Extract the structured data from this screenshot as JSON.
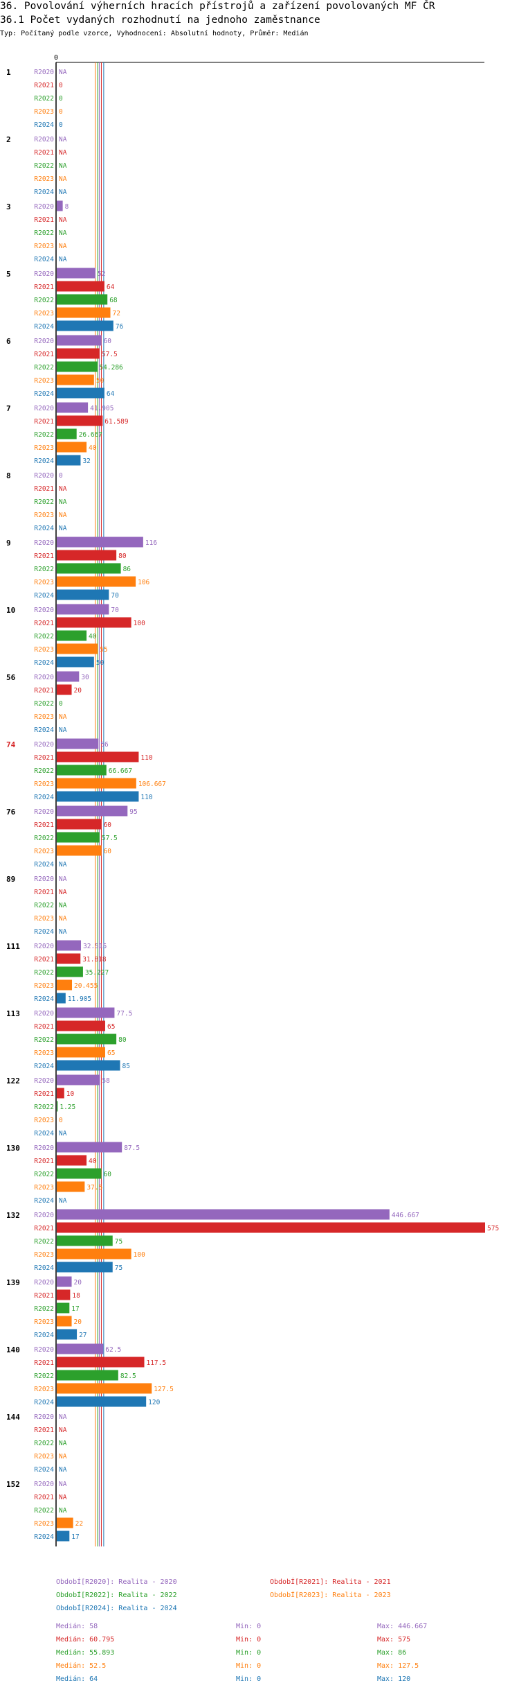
{
  "title": "36. Povolování výherních hracích přístrojů a zařízení povolovaných MF ČR",
  "subtitle": "36.1 Počet vydaných rozhodnutí na jednoho zaměstnance",
  "meta": "Typ: Počítaný podle vzorce, Vyhodnocení: Absolutní hodnoty, Průměr: Medián",
  "colors": {
    "R2020": "#9467bd",
    "R2021": "#d62728",
    "R2022": "#2ca02c",
    "R2023": "#ff7f0e",
    "R2024": "#1f77b4"
  },
  "chart_data": {
    "type": "bar",
    "orientation": "horizontal",
    "axis_zero_label": "0",
    "na_label": "NA",
    "series_names": [
      "R2020",
      "R2021",
      "R2022",
      "R2023",
      "R2024"
    ],
    "groups": [
      {
        "label": "1",
        "highlight": false,
        "values": [
          null,
          0,
          0,
          0,
          0
        ]
      },
      {
        "label": "2",
        "highlight": false,
        "values": [
          null,
          null,
          null,
          null,
          null
        ]
      },
      {
        "label": "3",
        "highlight": false,
        "values": [
          8,
          null,
          null,
          null,
          null
        ]
      },
      {
        "label": "5",
        "highlight": false,
        "values": [
          52,
          64,
          68,
          72,
          76
        ]
      },
      {
        "label": "6",
        "highlight": false,
        "values": [
          60,
          57.5,
          54.286,
          50,
          64
        ]
      },
      {
        "label": "7",
        "highlight": false,
        "values": [
          41.905,
          61.589,
          26.667,
          40,
          32
        ]
      },
      {
        "label": "8",
        "highlight": false,
        "values": [
          0,
          null,
          null,
          null,
          null
        ]
      },
      {
        "label": "9",
        "highlight": false,
        "values": [
          116,
          80,
          86,
          106,
          70
        ]
      },
      {
        "label": "10",
        "highlight": false,
        "values": [
          70,
          100,
          40,
          55,
          50
        ]
      },
      {
        "label": "56",
        "highlight": false,
        "values": [
          30,
          20,
          0,
          null,
          null
        ]
      },
      {
        "label": "74",
        "highlight": true,
        "values": [
          56,
          110,
          66.667,
          106.667,
          110
        ]
      },
      {
        "label": "76",
        "highlight": false,
        "values": [
          95,
          60,
          57.5,
          60,
          null
        ]
      },
      {
        "label": "89",
        "highlight": false,
        "values": [
          null,
          null,
          null,
          null,
          null
        ]
      },
      {
        "label": "111",
        "highlight": false,
        "values": [
          32.515,
          31.818,
          35.227,
          20.455,
          11.905
        ]
      },
      {
        "label": "113",
        "highlight": false,
        "values": [
          77.5,
          65,
          80,
          65,
          85
        ]
      },
      {
        "label": "122",
        "highlight": false,
        "values": [
          58,
          10,
          1.25,
          0,
          null
        ]
      },
      {
        "label": "130",
        "highlight": false,
        "values": [
          87.5,
          40,
          60,
          37.5,
          null
        ]
      },
      {
        "label": "132",
        "highlight": false,
        "values": [
          446.667,
          575,
          75,
          100,
          75
        ]
      },
      {
        "label": "139",
        "highlight": false,
        "values": [
          20,
          18,
          17,
          20,
          27
        ]
      },
      {
        "label": "140",
        "highlight": false,
        "values": [
          62.5,
          117.5,
          82.5,
          127.5,
          120
        ]
      },
      {
        "label": "144",
        "highlight": false,
        "values": [
          null,
          null,
          null,
          null,
          null
        ]
      },
      {
        "label": "152",
        "highlight": false,
        "values": [
          null,
          null,
          null,
          22,
          17
        ]
      }
    ],
    "xlim": [
      0,
      575
    ],
    "median_lines": [
      58,
      60.795,
      55.893,
      52.5,
      64
    ]
  },
  "legend": [
    {
      "key": "R2020",
      "text": "ObdobÍ[R2020]: Realita - 2020"
    },
    {
      "key": "R2021",
      "text": "ObdobÍ[R2021]: Realita - 2021"
    },
    {
      "key": "R2022",
      "text": "ObdobÍ[R2022]: Realita - 2022"
    },
    {
      "key": "R2023",
      "text": "ObdobÍ[R2023]: Realita - 2023"
    },
    {
      "key": "R2024",
      "text": "ObdobÍ[R2024]: Realita - 2024"
    }
  ],
  "stats": [
    {
      "key": "R2020",
      "median": "Medián: 58",
      "min": "Min: 0",
      "max": "Max: 446.667"
    },
    {
      "key": "R2021",
      "median": "Medián: 60.795",
      "min": "Min: 0",
      "max": "Max: 575"
    },
    {
      "key": "R2022",
      "median": "Medián: 55.893",
      "min": "Min: 0",
      "max": "Max: 86"
    },
    {
      "key": "R2023",
      "median": "Medián: 52.5",
      "min": "Min: 0",
      "max": "Max: 127.5"
    },
    {
      "key": "R2024",
      "median": "Medián: 64",
      "min": "Min: 0",
      "max": "Max: 120"
    }
  ]
}
